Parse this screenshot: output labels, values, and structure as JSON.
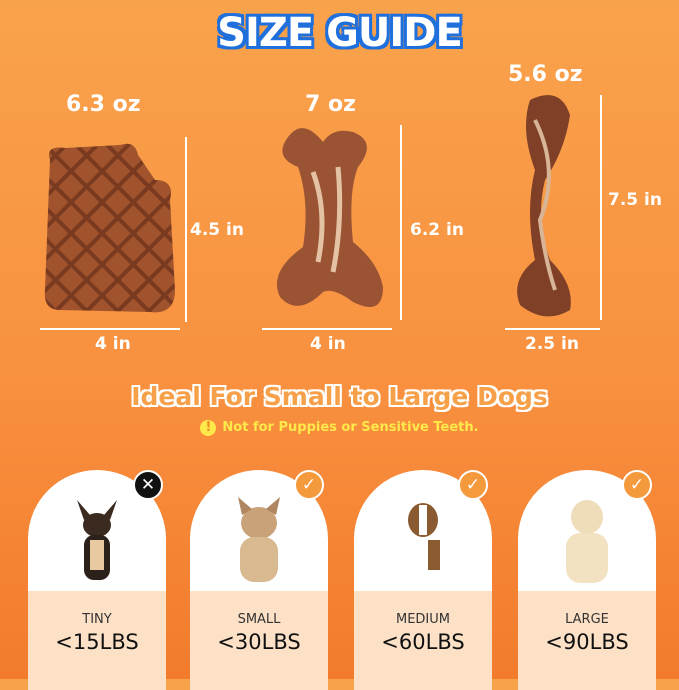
{
  "title": "SIZE GUIDE",
  "products": [
    {
      "weight": "6.3 oz",
      "height": "4.5 in",
      "width": "4 in"
    },
    {
      "weight": "7 oz",
      "height": "6.2 in",
      "width": "4 in"
    },
    {
      "weight": "5.6 oz",
      "height": "7.5 in",
      "width": "2.5 in"
    }
  ],
  "subtitle": "Ideal For Small to Large Dogs",
  "warning": "Not for Puppies or Sensitive Teeth.",
  "dogs": [
    {
      "label": "TINY",
      "weight": "<15LBS",
      "suitable": false,
      "icon": "x-icon"
    },
    {
      "label": "SMALL",
      "weight": "<30LBS",
      "suitable": true,
      "icon": "check-icon"
    },
    {
      "label": "MEDIUM",
      "weight": "<60LBS",
      "suitable": true,
      "icon": "check-icon"
    },
    {
      "label": "LARGE",
      "weight": "<90LBS",
      "suitable": true,
      "icon": "check-icon"
    }
  ],
  "colors": {
    "title_outline": "#1f6fdc",
    "warning": "#ffe94a",
    "chew": "#7a3d22"
  }
}
